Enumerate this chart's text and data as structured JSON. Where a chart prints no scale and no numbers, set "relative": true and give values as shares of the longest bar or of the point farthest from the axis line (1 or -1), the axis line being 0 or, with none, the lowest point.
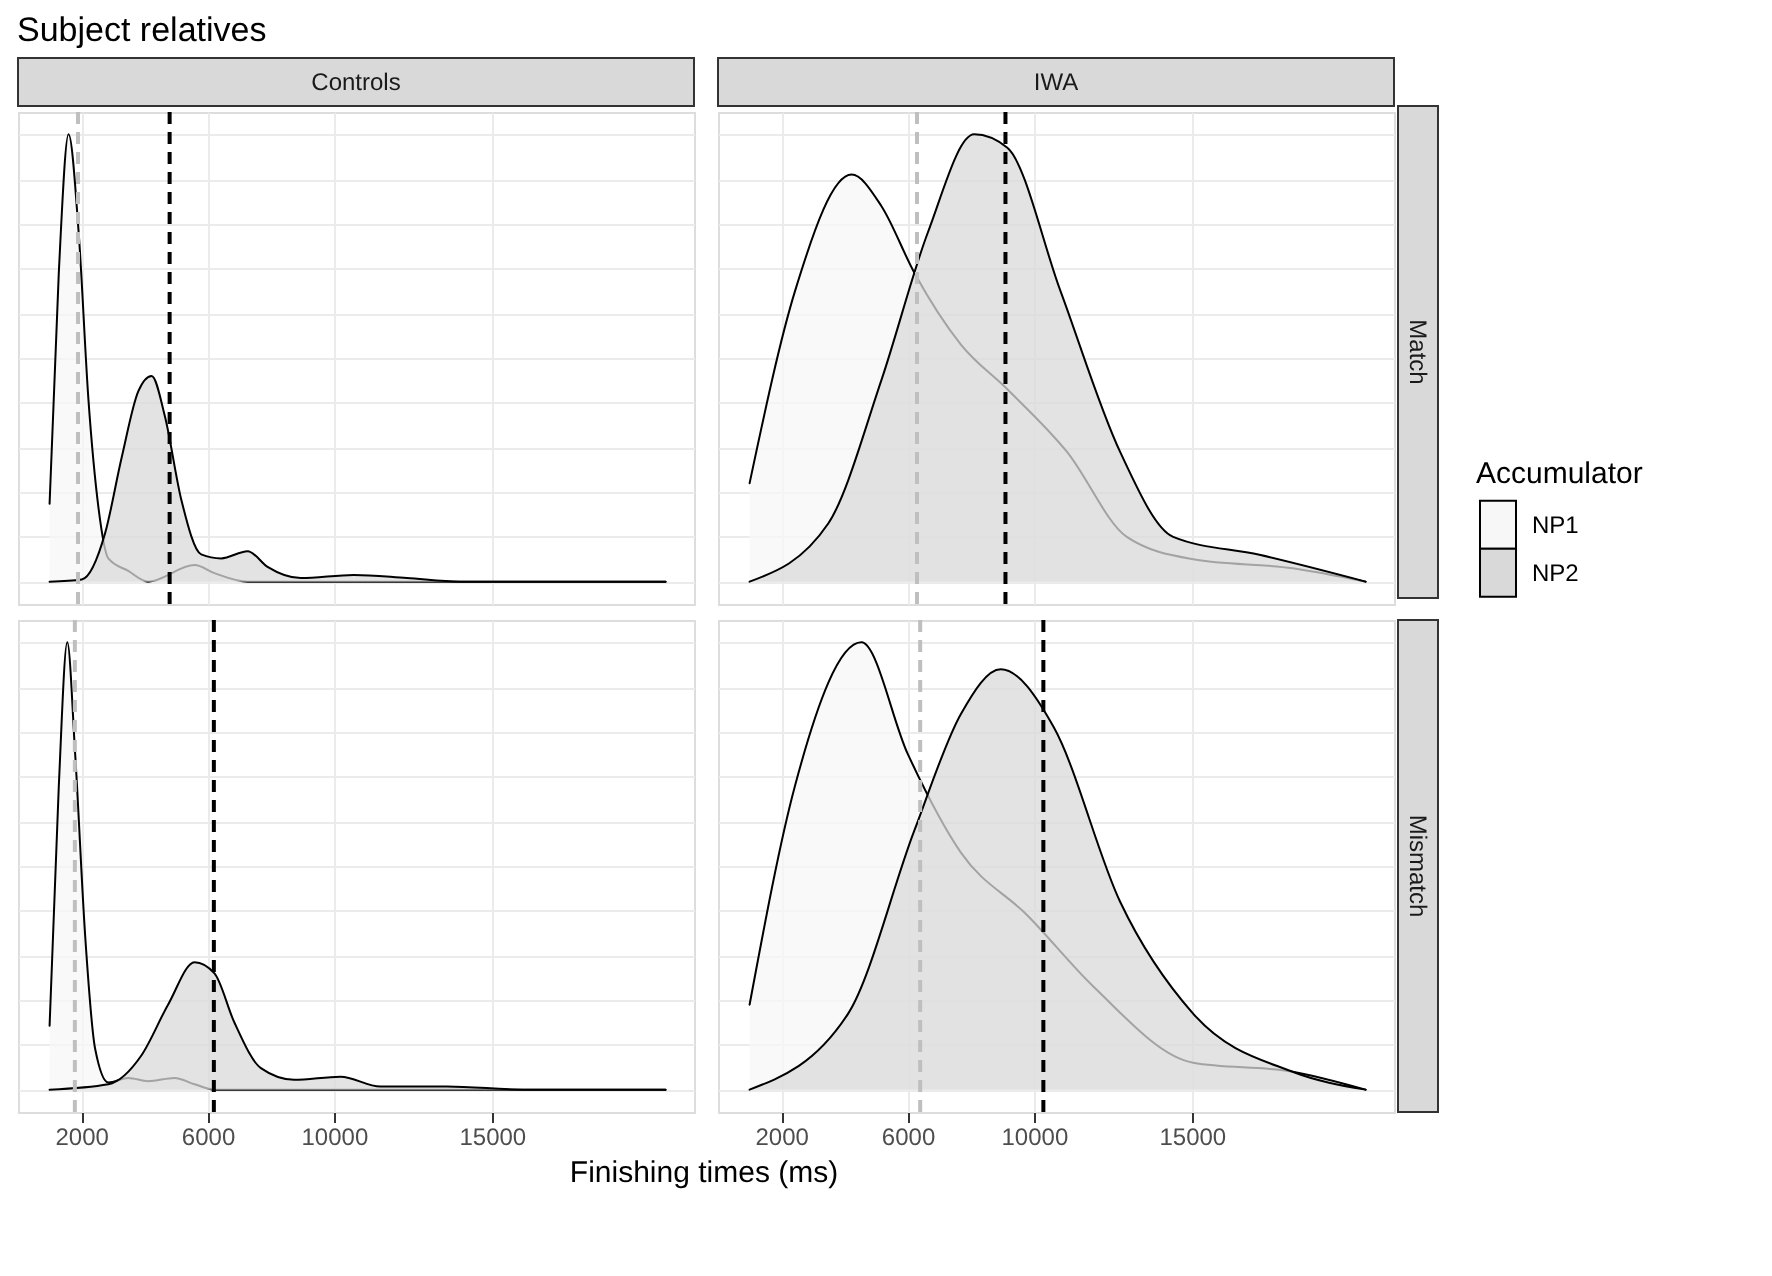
{
  "chart_data": [
    {
      "type": "area",
      "title": "Controls",
      "annotations": [
        "Subject relatives"
      ],
      "relative": true,
      "xlim": [
        0,
        21400
      ],
      "xticks": [
        2000,
        6000,
        10000,
        15000
      ],
      "grid": true,
      "tick_labels": false,
      "series": [
        {
          "color": "#f7f7f7",
          "x": [
            1000,
            1290,
            1600,
            1920,
            2230,
            2550,
            2860,
            3490,
            4120,
            5590,
            6220,
            7270,
            20500
          ],
          "values": [
            0.174,
            0.688,
            1,
            0.781,
            0.407,
            0.164,
            0.052,
            0.024,
            0,
            0.037,
            0.019,
            0,
            0
          ]
        },
        {
          "color": "#d9d9d9",
          "x": [
            1000,
            2020,
            2760,
            3280,
            3810,
            4230,
            4650,
            5170,
            5800,
            6430,
            7270,
            7900,
            8950,
            10630,
            12310,
            14000,
            20500
          ],
          "values": [
            0,
            0.005,
            0.109,
            0.277,
            0.426,
            0.46,
            0.37,
            0.183,
            0.061,
            0.052,
            0.068,
            0.033,
            0.008,
            0.015,
            0.008,
            0,
            0
          ]
        }
      ],
      "ref_lines": [
        {
          "axis": "x",
          "value": 1900,
          "color": "#bfbfbf",
          "line_style": "dashed"
        },
        {
          "axis": "x",
          "value": 4800,
          "color": "#000000",
          "line_style": "dashed"
        }
      ]
    },
    {
      "type": "area",
      "title": "IWA",
      "y2label": "Match",
      "legend_title": "Accumulator",
      "legend": "right",
      "relative": true,
      "xlim": [
        0,
        21400
      ],
      "xticks": [
        2000,
        6000,
        10000,
        15000
      ],
      "grid": true,
      "tick_labels": false,
      "series": [
        {
          "name": "NP1",
          "color": "#f7f7f7",
          "x": [
            1000,
            2440,
            4230,
            5170,
            6220,
            7690,
            9160,
            11050,
            12940,
            15040,
            18190,
            20500
          ],
          "values": [
            0.22,
            0.65,
            0.91,
            0.84,
            0.69,
            0.53,
            0.43,
            0.29,
            0.1,
            0.05,
            0.03,
            0
          ]
        },
        {
          "name": "NP2",
          "color": "#d9d9d9",
          "x": [
            1000,
            3490,
            5170,
            6640,
            8110,
            9160,
            10840,
            12730,
            14410,
            17140,
            20500
          ],
          "values": [
            0,
            0.13,
            0.45,
            0.78,
            1,
            0.97,
            0.65,
            0.29,
            0.1,
            0.06,
            0
          ]
        }
      ],
      "ref_lines": [
        {
          "axis": "x",
          "value": 6300,
          "color": "#bfbfbf",
          "line_style": "dashed"
        },
        {
          "axis": "x",
          "value": 9100,
          "color": "#000000",
          "line_style": "dashed"
        }
      ]
    },
    {
      "type": "area",
      "xlabel": "Finishing times (ms)",
      "relative": true,
      "xlim": [
        0,
        21400
      ],
      "xticks": [
        2000,
        6000,
        10000,
        15000
      ],
      "grid": true,
      "tick_labels": "x",
      "series": [
        {
          "color": "#f7f7f7",
          "x": [
            1000,
            1290,
            1560,
            1810,
            2130,
            2440,
            2860,
            3490,
            4120,
            4960,
            5590,
            6220,
            20500
          ],
          "values": [
            0.143,
            0.676,
            1.0,
            0.75,
            0.34,
            0.092,
            0.016,
            0.026,
            0.019,
            0.026,
            0.012,
            0,
            0
          ]
        },
        {
          "color": "#d9d9d9",
          "x": [
            1000,
            2860,
            3910,
            4750,
            5590,
            6220,
            6850,
            7690,
            8740,
            10210,
            11470,
            13570,
            16090,
            20500
          ],
          "values": [
            0,
            0.012,
            0.077,
            0.19,
            0.285,
            0.26,
            0.15,
            0.048,
            0.022,
            0.029,
            0.007,
            0.007,
            0,
            0
          ]
        }
      ],
      "ref_lines": [
        {
          "axis": "x",
          "value": 1800,
          "color": "#bfbfbf",
          "line_style": "dashed"
        },
        {
          "axis": "x",
          "value": 6200,
          "color": "#000000",
          "line_style": "dashed"
        }
      ]
    },
    {
      "type": "area",
      "y2label": "Mismatch",
      "relative": true,
      "xlim": [
        0,
        21400
      ],
      "xticks": [
        2000,
        6000,
        10000,
        15000
      ],
      "grid": true,
      "tick_labels": "x",
      "series": [
        {
          "color": "#f7f7f7",
          "x": [
            1000,
            2440,
            4540,
            6010,
            7690,
            9790,
            11890,
            15040,
            18190,
            20500
          ],
          "values": [
            0.19,
            0.68,
            1,
            0.75,
            0.53,
            0.39,
            0.23,
            0.06,
            0.04,
            0
          ]
        },
        {
          "color": "#d9d9d9",
          "x": [
            1000,
            4120,
            6220,
            7690,
            8950,
            10630,
            12730,
            15040,
            18190,
            20500
          ],
          "values": [
            0,
            0.17,
            0.58,
            0.84,
            0.94,
            0.81,
            0.42,
            0.17,
            0.04,
            0
          ]
        }
      ],
      "ref_lines": [
        {
          "axis": "x",
          "value": 6400,
          "color": "#bfbfbf",
          "line_style": "dashed"
        },
        {
          "axis": "x",
          "value": 10300,
          "color": "#000000",
          "line_style": "dashed"
        }
      ]
    }
  ]
}
